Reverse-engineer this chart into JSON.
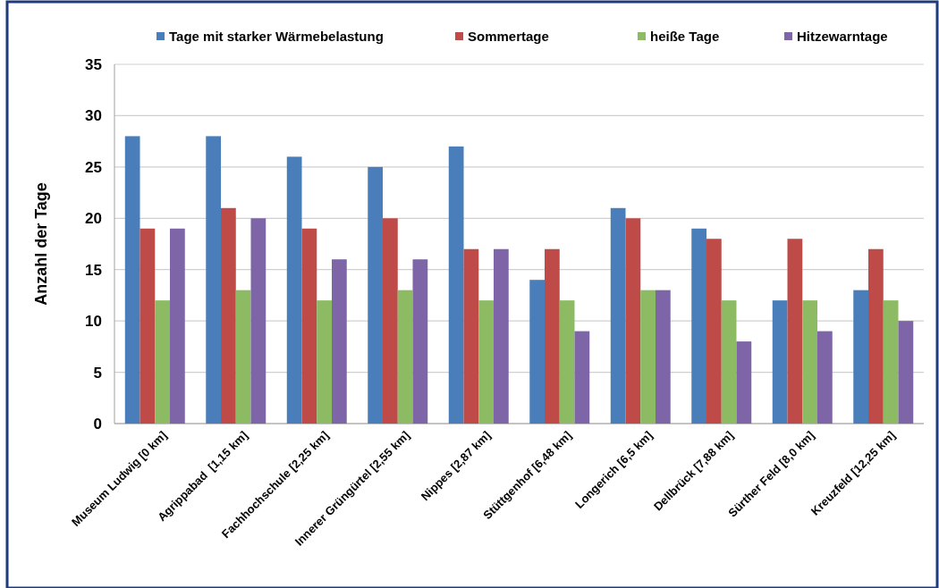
{
  "chart_data": {
    "type": "bar",
    "ylabel": "Anzahl der Tage",
    "categories": [
      "Museum Ludwig [0 km]",
      "Agrippabad  [1,15 km]",
      "Fachhochschule [2,25 km]",
      "Innerer Grüngürtel [2,55 km]",
      "Nippes [2,87 km]",
      "Stüttgenhof [6,48 km]",
      "Longerich [6,5 km]",
      "Dellbrück [7,88 km]",
      "Sürther Feld [8,0 km]",
      "Kreuzfeld [12,25 km]"
    ],
    "series": [
      {
        "name": "Tage mit starker Wärmebelastung",
        "color": "#4a7ebb",
        "values": [
          28,
          28,
          26,
          25,
          27,
          14,
          21,
          19,
          12,
          13
        ]
      },
      {
        "name": "Sommertage",
        "color": "#be4b48",
        "values": [
          19,
          21,
          19,
          20,
          17,
          17,
          20,
          18,
          18,
          17
        ]
      },
      {
        "name": "heiße Tage",
        "color": "#8cbb63",
        "values": [
          12,
          13,
          12,
          13,
          12,
          12,
          13,
          12,
          12,
          12
        ]
      },
      {
        "name": "Hitzewarntage",
        "color": "#7d65a8",
        "values": [
          19,
          20,
          16,
          16,
          17,
          9,
          13,
          8,
          9,
          10
        ]
      }
    ],
    "ylim": [
      0,
      35
    ],
    "yticks": [
      0,
      5,
      10,
      15,
      20,
      25,
      30,
      35
    ],
    "grid": "y",
    "legend": "top"
  }
}
